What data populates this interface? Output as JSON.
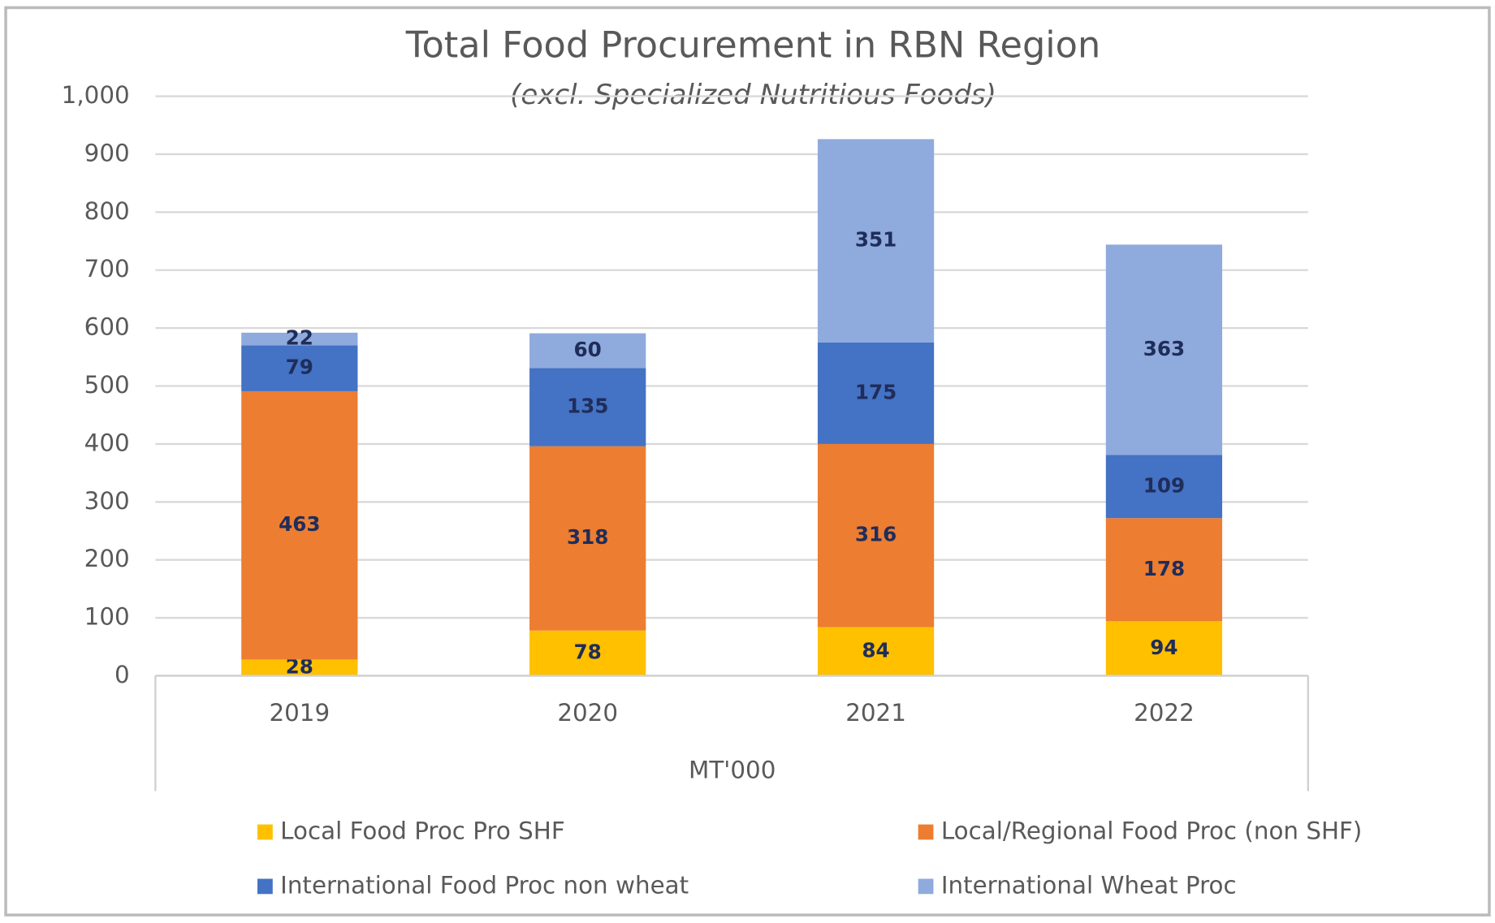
{
  "chart_data": {
    "type": "stacked_bar",
    "title": "Total Food Procurement in RBN Region",
    "subtitle": "(excl. Specialized Nutritious Foods)",
    "x_label": "MT'000",
    "categories": [
      "2019",
      "2020",
      "2021",
      "2022"
    ],
    "series": [
      {
        "name": "Local Food Proc Pro SHF",
        "color": "#ffc000",
        "values": [
          28,
          78,
          84,
          94
        ]
      },
      {
        "name": "Local/Regional Food Proc (non SHF)",
        "color": "#ed7d31",
        "values": [
          463,
          318,
          316,
          178
        ]
      },
      {
        "name": "International Food Proc non wheat",
        "color": "#4472c4",
        "values": [
          79,
          135,
          175,
          109
        ]
      },
      {
        "name": "International Wheat Proc",
        "color": "#8faadc",
        "values": [
          22,
          60,
          351,
          363
        ]
      }
    ],
    "ylim": [
      0,
      1000
    ],
    "yticks": [
      0,
      100,
      200,
      300,
      400,
      500,
      600,
      700,
      800,
      900,
      {
        "value": 1000,
        "label": "1,000"
      }
    ],
    "grid": true
  }
}
